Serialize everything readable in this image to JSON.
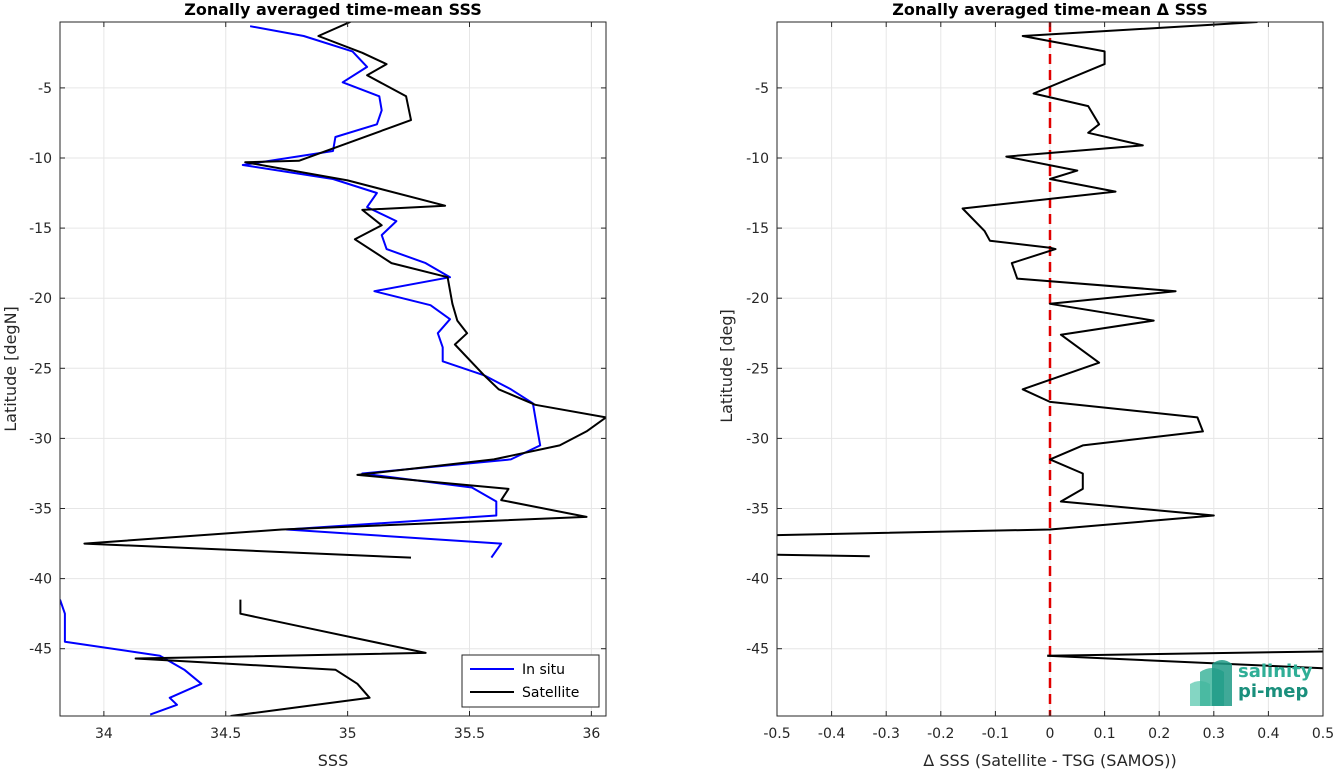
{
  "chart_data": [
    {
      "type": "line",
      "title": "Zonally averaged time-mean SSS",
      "xlabel": "SSS",
      "ylabel": "Latitude [degN]",
      "xlim": [
        33.82,
        36.06
      ],
      "ylim": [
        -49.8,
        -0.3
      ],
      "grid": true,
      "x_ticks": [
        34,
        34.5,
        35,
        35.5,
        36
      ],
      "x_tick_labels": [
        "34",
        "34.5",
        "35",
        "35.5",
        "36"
      ],
      "y_ticks": [
        -5,
        -10,
        -15,
        -20,
        -25,
        -30,
        -35,
        -40,
        -45
      ],
      "y_tick_labels": [
        "-5",
        "-10",
        "-15",
        "-20",
        "-25",
        "-30",
        "-35",
        "-40",
        "-45"
      ],
      "legend": {
        "placement": "bottom-right",
        "entries": [
          "In situ",
          "Satellite"
        ]
      },
      "series": [
        {
          "name": "In situ",
          "color": "#0000ff",
          "segments": [
            [
              [
                34.6,
                -0.6
              ],
              [
                34.82,
                -1.3
              ],
              [
                35.02,
                -2.4
              ],
              [
                35.08,
                -3.5
              ],
              [
                34.98,
                -4.6
              ],
              [
                35.13,
                -5.6
              ],
              [
                35.14,
                -6.6
              ],
              [
                35.12,
                -7.6
              ],
              [
                34.95,
                -8.5
              ],
              [
                34.94,
                -9.5
              ],
              [
                34.57,
                -10.5
              ],
              [
                34.94,
                -11.5
              ],
              [
                35.12,
                -12.5
              ],
              [
                35.08,
                -13.5
              ],
              [
                35.2,
                -14.5
              ],
              [
                35.14,
                -15.5
              ],
              [
                35.16,
                -16.5
              ],
              [
                35.32,
                -17.5
              ],
              [
                35.42,
                -18.5
              ],
              [
                35.11,
                -19.5
              ],
              [
                35.34,
                -20.5
              ],
              [
                35.42,
                -21.5
              ],
              [
                35.37,
                -22.5
              ],
              [
                35.39,
                -23.5
              ],
              [
                35.39,
                -24.5
              ],
              [
                35.56,
                -25.5
              ],
              [
                35.67,
                -26.5
              ],
              [
                35.76,
                -27.5
              ],
              [
                35.77,
                -28.5
              ],
              [
                35.78,
                -29.5
              ],
              [
                35.79,
                -30.5
              ],
              [
                35.67,
                -31.5
              ],
              [
                35.06,
                -32.5
              ],
              [
                35.51,
                -33.5
              ],
              [
                35.61,
                -34.5
              ],
              [
                35.61,
                -35.5
              ],
              [
                34.75,
                -36.5
              ],
              [
                35.63,
                -37.5
              ],
              [
                35.59,
                -38.5
              ]
            ],
            [
              [
                33.82,
                -41.5
              ],
              [
                33.84,
                -42.5
              ],
              [
                33.84,
                -43.5
              ],
              [
                33.84,
                -44.5
              ],
              [
                34.23,
                -45.5
              ],
              [
                34.33,
                -46.5
              ],
              [
                34.4,
                -47.5
              ],
              [
                34.27,
                -48.5
              ],
              [
                34.3,
                -49.0
              ],
              [
                34.19,
                -49.7
              ]
            ]
          ]
        },
        {
          "name": "Satellite",
          "color": "#000000",
          "segments": [
            [
              [
                34.92,
                0.1
              ],
              [
                35.01,
                -0.3
              ],
              [
                34.88,
                -1.3
              ],
              [
                35.06,
                -2.5
              ],
              [
                35.16,
                -3.3
              ],
              [
                35.08,
                -4.1
              ],
              [
                35.24,
                -5.6
              ],
              [
                35.26,
                -7.3
              ],
              [
                34.8,
                -10.2
              ],
              [
                34.58,
                -10.3
              ],
              [
                35.0,
                -11.6
              ],
              [
                35.4,
                -13.4
              ],
              [
                35.06,
                -13.7
              ],
              [
                35.14,
                -14.8
              ],
              [
                35.03,
                -15.8
              ],
              [
                35.18,
                -17.5
              ],
              [
                35.41,
                -18.5
              ],
              [
                35.43,
                -20.4
              ],
              [
                35.45,
                -21.6
              ],
              [
                35.49,
                -22.5
              ],
              [
                35.44,
                -23.3
              ],
              [
                35.56,
                -25.5
              ],
              [
                35.62,
                -26.5
              ],
              [
                35.77,
                -27.6
              ],
              [
                36.06,
                -28.5
              ],
              [
                35.98,
                -29.5
              ],
              [
                35.87,
                -30.5
              ],
              [
                35.6,
                -31.5
              ],
              [
                35.04,
                -32.6
              ],
              [
                35.66,
                -33.6
              ],
              [
                35.63,
                -34.4
              ],
              [
                35.98,
                -35.6
              ],
              [
                34.73,
                -36.5
              ],
              [
                33.92,
                -37.5
              ],
              [
                35.26,
                -38.5
              ]
            ],
            [
              [
                34.56,
                -41.5
              ],
              [
                34.56,
                -42.5
              ],
              [
                34.83,
                -43.5
              ],
              [
                35.32,
                -45.3
              ],
              [
                34.13,
                -45.7
              ],
              [
                34.95,
                -46.5
              ],
              [
                35.04,
                -47.5
              ],
              [
                35.09,
                -48.5
              ],
              [
                34.74,
                -49.3
              ],
              [
                34.52,
                -49.8
              ]
            ]
          ]
        }
      ]
    },
    {
      "type": "line",
      "title": "Zonally averaged time-mean Δ SSS",
      "xlabel": "Δ SSS (Satellite - TSG (SAMOS))",
      "ylabel": "Latitude [deg]",
      "xlim": [
        -0.5,
        0.5
      ],
      "ylim": [
        -49.8,
        -0.3
      ],
      "grid": true,
      "x_ticks": [
        -0.5,
        -0.4,
        -0.3,
        -0.2,
        -0.1,
        0,
        0.1,
        0.2,
        0.3,
        0.4,
        0.5
      ],
      "x_tick_labels": [
        "-0.5",
        "-0.4",
        "-0.3",
        "-0.2",
        "-0.1",
        "0",
        "0.1",
        "0.2",
        "0.3",
        "0.4",
        "0.5"
      ],
      "y_ticks": [
        -5,
        -10,
        -15,
        -20,
        -25,
        -30,
        -35,
        -40,
        -45
      ],
      "y_tick_labels": [
        "-5",
        "-10",
        "-15",
        "-20",
        "-25",
        "-30",
        "-35",
        "-40",
        "-45"
      ],
      "zero_line": {
        "x": 0,
        "color": "#e00000",
        "style": "dashed"
      },
      "series": [
        {
          "color": "#000000",
          "segments": [
            [
              [
                0.38,
                -0.3
              ],
              [
                -0.05,
                -1.3
              ],
              [
                0.1,
                -2.4
              ],
              [
                0.1,
                -3.3
              ],
              [
                -0.03,
                -5.4
              ],
              [
                0.07,
                -6.3
              ],
              [
                0.09,
                -7.6
              ],
              [
                0.07,
                -8.2
              ],
              [
                0.17,
                -9.1
              ],
              [
                -0.08,
                -9.9
              ],
              [
                0.05,
                -10.9
              ],
              [
                0.0,
                -11.5
              ],
              [
                0.12,
                -12.4
              ],
              [
                -0.16,
                -13.6
              ],
              [
                -0.12,
                -15.2
              ],
              [
                -0.11,
                -15.9
              ],
              [
                0.0,
                -16.4
              ],
              [
                0.01,
                -16.5
              ],
              [
                -0.07,
                -17.5
              ],
              [
                -0.06,
                -18.6
              ],
              [
                0.23,
                -19.5
              ],
              [
                0.0,
                -20.4
              ],
              [
                0.19,
                -21.6
              ],
              [
                0.02,
                -22.6
              ],
              [
                0.09,
                -24.6
              ],
              [
                -0.05,
                -26.5
              ],
              [
                0.0,
                -27.4
              ],
              [
                0.27,
                -28.5
              ],
              [
                0.28,
                -29.5
              ],
              [
                0.06,
                -30.5
              ],
              [
                0.0,
                -31.5
              ],
              [
                0.06,
                -32.5
              ],
              [
                0.06,
                -33.6
              ],
              [
                0.02,
                -34.5
              ],
              [
                0.3,
                -35.5
              ],
              [
                0.0,
                -36.5
              ],
              [
                -0.5,
                -36.9
              ]
            ],
            [
              [
                -0.5,
                -38.3
              ],
              [
                -0.33,
                -38.4
              ]
            ],
            [
              [
                -0.005,
                -45.5
              ],
              [
                0.5,
                -45.2
              ]
            ],
            [
              [
                -0.005,
                -45.5
              ],
              [
                0.5,
                -46.4
              ]
            ]
          ]
        }
      ]
    }
  ],
  "logo": {
    "line1": "salinity",
    "line2": "pi-mep"
  }
}
